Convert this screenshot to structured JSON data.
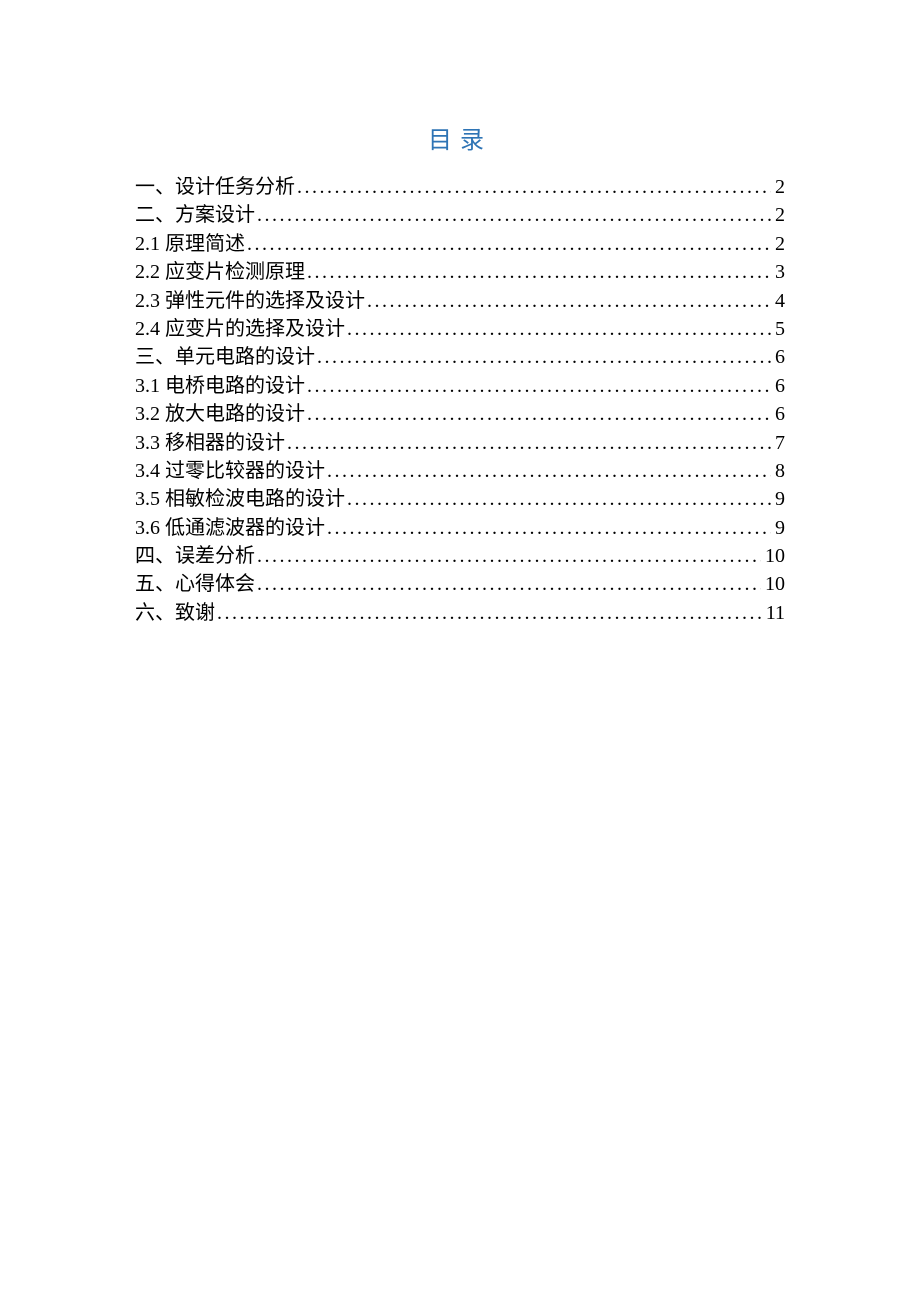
{
  "title": "目录",
  "title_color": "#2e74b5",
  "background_color": "#ffffff",
  "text_color": "#000000",
  "font_size_title": 24,
  "font_size_entry": 20,
  "entries": [
    {
      "label": "一、设计任务分析",
      "page": "2",
      "trailing_space": true
    },
    {
      "label": "二、方案设计",
      "page": "2",
      "trailing_space": true
    },
    {
      "label": "2.1 原理简述",
      "page": "2",
      "trailing_space": false
    },
    {
      "label": "2.2 应变片检测原理",
      "page": "3",
      "trailing_space": false
    },
    {
      "label": "2.3 弹性元件的选择及设计",
      "page": "4",
      "trailing_space": false
    },
    {
      "label": "2.4 应变片的选择及设计",
      "page": "5",
      "trailing_space": false
    },
    {
      "label": "三、单元电路的设计",
      "page": "6",
      "trailing_space": true
    },
    {
      "label": "3.1 电桥电路的设计",
      "page": "6",
      "trailing_space": false
    },
    {
      "label": "3.2 放大电路的设计",
      "page": "6",
      "trailing_space": false
    },
    {
      "label": "3.3 移相器的设计",
      "page": "7",
      "trailing_space": false
    },
    {
      "label": "3.4 过零比较器的设计",
      "page": "8",
      "trailing_space": false
    },
    {
      "label": "3.5 相敏检波电路的设计",
      "page": "9",
      "trailing_space": false
    },
    {
      "label": "3.6 低通滤波器的设计",
      "page": "9",
      "trailing_space": false
    },
    {
      "label": "四、误差分析",
      "page": "10",
      "trailing_space": true
    },
    {
      "label": "五、心得体会",
      "page": "10",
      "trailing_space": true
    },
    {
      "label": "六、致谢",
      "page": "11",
      "trailing_space": true
    }
  ]
}
